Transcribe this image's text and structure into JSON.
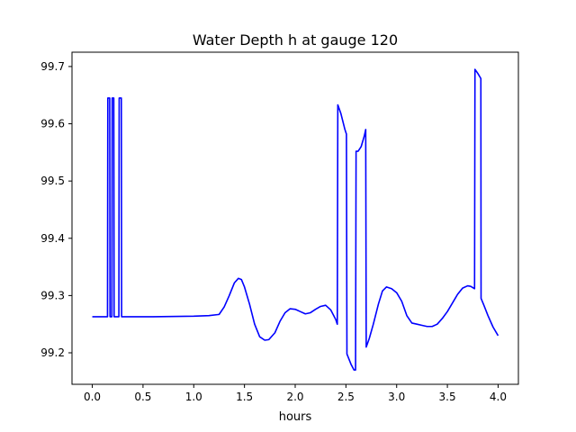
{
  "chart_data": {
    "type": "line",
    "title": "Water Depth h at gauge 120",
    "xlabel": "hours",
    "ylabel": "",
    "xlim": [
      -0.2,
      4.2
    ],
    "ylim": [
      99.145,
      99.725
    ],
    "xticks": [
      {
        "value": 0.0,
        "label": "0.0"
      },
      {
        "value": 0.5,
        "label": "0.5"
      },
      {
        "value": 1.0,
        "label": "1.0"
      },
      {
        "value": 1.5,
        "label": "1.5"
      },
      {
        "value": 2.0,
        "label": "2.0"
      },
      {
        "value": 2.5,
        "label": "2.5"
      },
      {
        "value": 3.0,
        "label": "3.0"
      },
      {
        "value": 3.5,
        "label": "3.5"
      },
      {
        "value": 4.0,
        "label": "4.0"
      }
    ],
    "yticks": [
      {
        "value": 99.2,
        "label": "99.2"
      },
      {
        "value": 99.3,
        "label": "99.3"
      },
      {
        "value": 99.4,
        "label": "99.4"
      },
      {
        "value": 99.5,
        "label": "99.5"
      },
      {
        "value": 99.6,
        "label": "99.6"
      },
      {
        "value": 99.7,
        "label": "99.7"
      }
    ],
    "grid": false,
    "legend": "none",
    "series": [
      {
        "color": "#0000ff",
        "points": [
          [
            0.0,
            99.263
          ],
          [
            0.15,
            99.263
          ],
          [
            0.153,
            99.645
          ],
          [
            0.172,
            99.645
          ],
          [
            0.175,
            99.263
          ],
          [
            0.193,
            99.263
          ],
          [
            0.196,
            99.645
          ],
          [
            0.212,
            99.645
          ],
          [
            0.215,
            99.263
          ],
          [
            0.262,
            99.263
          ],
          [
            0.265,
            99.645
          ],
          [
            0.286,
            99.645
          ],
          [
            0.289,
            99.263
          ],
          [
            0.6,
            99.263
          ],
          [
            1.0,
            99.264
          ],
          [
            1.15,
            99.265
          ],
          [
            1.25,
            99.267
          ],
          [
            1.3,
            99.28
          ],
          [
            1.35,
            99.3
          ],
          [
            1.4,
            99.322
          ],
          [
            1.44,
            99.33
          ],
          [
            1.47,
            99.328
          ],
          [
            1.5,
            99.315
          ],
          [
            1.55,
            99.285
          ],
          [
            1.6,
            99.25
          ],
          [
            1.65,
            99.228
          ],
          [
            1.7,
            99.222
          ],
          [
            1.74,
            99.223
          ],
          [
            1.8,
            99.235
          ],
          [
            1.85,
            99.255
          ],
          [
            1.9,
            99.27
          ],
          [
            1.95,
            99.277
          ],
          [
            2.0,
            99.276
          ],
          [
            2.05,
            99.272
          ],
          [
            2.1,
            99.268
          ],
          [
            2.15,
            99.27
          ],
          [
            2.2,
            99.276
          ],
          [
            2.25,
            99.281
          ],
          [
            2.3,
            99.283
          ],
          [
            2.35,
            99.275
          ],
          [
            2.4,
            99.258
          ],
          [
            2.415,
            99.25
          ],
          [
            2.42,
            99.633
          ],
          [
            2.45,
            99.618
          ],
          [
            2.49,
            99.59
          ],
          [
            2.505,
            99.582
          ],
          [
            2.51,
            99.198
          ],
          [
            2.55,
            99.18
          ],
          [
            2.58,
            99.17
          ],
          [
            2.595,
            99.17
          ],
          [
            2.6,
            99.552
          ],
          [
            2.62,
            99.552
          ],
          [
            2.65,
            99.56
          ],
          [
            2.68,
            99.578
          ],
          [
            2.695,
            99.59
          ],
          [
            2.7,
            99.21
          ],
          [
            2.73,
            99.225
          ],
          [
            2.77,
            99.25
          ],
          [
            2.82,
            99.285
          ],
          [
            2.86,
            99.308
          ],
          [
            2.9,
            99.315
          ],
          [
            2.95,
            99.312
          ],
          [
            3.0,
            99.305
          ],
          [
            3.05,
            99.29
          ],
          [
            3.1,
            99.265
          ],
          [
            3.15,
            99.252
          ],
          [
            3.2,
            99.25
          ],
          [
            3.25,
            99.248
          ],
          [
            3.3,
            99.246
          ],
          [
            3.35,
            99.246
          ],
          [
            3.4,
            99.25
          ],
          [
            3.45,
            99.26
          ],
          [
            3.5,
            99.272
          ],
          [
            3.55,
            99.287
          ],
          [
            3.6,
            99.302
          ],
          [
            3.65,
            99.313
          ],
          [
            3.7,
            99.317
          ],
          [
            3.73,
            99.316
          ],
          [
            3.768,
            99.312
          ],
          [
            3.772,
            99.695
          ],
          [
            3.8,
            99.688
          ],
          [
            3.83,
            99.679
          ],
          [
            3.832,
            99.295
          ],
          [
            3.86,
            99.283
          ],
          [
            3.9,
            99.265
          ],
          [
            3.95,
            99.245
          ],
          [
            4.0,
            99.23
          ]
        ]
      }
    ]
  }
}
